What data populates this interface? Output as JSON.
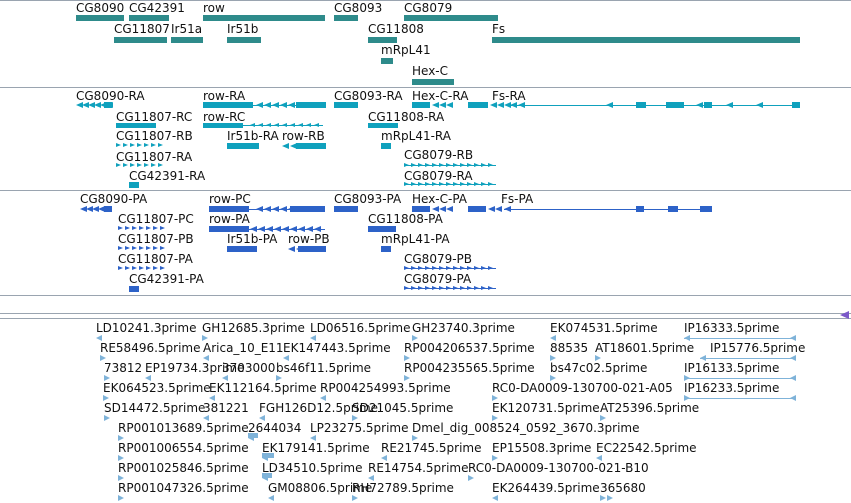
{
  "colors": {
    "gene": "#2e8b8b",
    "mrna_ra": "#0fa1bd",
    "mrna_pa": "#2d62c8",
    "est": "#7fb3d9",
    "separator": "#9aa4b0",
    "scroll_indicator": "#7b59c9"
  },
  "tracks": [
    {
      "name": "gene",
      "color": "#2e8b8b",
      "labels": [
        {
          "text": "CG8090"
        },
        {
          "text": "CG42391"
        },
        {
          "text": "row"
        },
        {
          "text": "CG8093"
        },
        {
          "text": "CG8079"
        },
        {
          "text": "CG11807"
        },
        {
          "text": "Ir51a"
        },
        {
          "text": "Ir51b"
        },
        {
          "text": "CG11808"
        },
        {
          "text": "Fs"
        },
        {
          "text": "mRpL41"
        },
        {
          "text": "Hex-C"
        }
      ]
    },
    {
      "name": "transcript-ra",
      "color": "#0fa1bd",
      "labels": [
        {
          "text": "CG8090-RA"
        },
        {
          "text": "row-RA"
        },
        {
          "text": "CG8093-RA"
        },
        {
          "text": "Hex-C-RA"
        },
        {
          "text": "Fs-RA"
        },
        {
          "text": "CG11807-RC"
        },
        {
          "text": "row-RC"
        },
        {
          "text": "CG11808-RA"
        },
        {
          "text": "CG11807-RB"
        },
        {
          "text": "Ir51b-RA"
        },
        {
          "text": "row-RB"
        },
        {
          "text": "mRpL41-RA"
        },
        {
          "text": "CG11807-RA"
        },
        {
          "text": "CG8079-RB"
        },
        {
          "text": "CG42391-RA"
        },
        {
          "text": "CG8079-RA"
        }
      ]
    },
    {
      "name": "polypeptide-pa",
      "color": "#2d62c8",
      "labels": [
        {
          "text": "CG8090-PA"
        },
        {
          "text": "row-PC"
        },
        {
          "text": "CG8093-PA"
        },
        {
          "text": "Hex-C-PA"
        },
        {
          "text": "Fs-PA"
        },
        {
          "text": "CG11807-PC"
        },
        {
          "text": "row-PA"
        },
        {
          "text": "CG11808-PA"
        },
        {
          "text": "CG11807-PB"
        },
        {
          "text": "Ir51b-PA"
        },
        {
          "text": "row-PB"
        },
        {
          "text": "mRpL41-PA"
        },
        {
          "text": "CG11807-PA"
        },
        {
          "text": "CG8079-PB"
        },
        {
          "text": "CG42391-PA"
        },
        {
          "text": "CG8079-PA"
        }
      ]
    },
    {
      "name": "est",
      "color": "#7fb3d9",
      "labels": [
        {
          "text": "LD10241.3prime"
        },
        {
          "text": "GH12685.3prime"
        },
        {
          "text": "LD06516.5prime"
        },
        {
          "text": "GH23740.3prime"
        },
        {
          "text": "EK074531.5prime"
        },
        {
          "text": "IP16333.5prime"
        },
        {
          "text": "RE58496.5prime"
        },
        {
          "text": "Arica_10_E11"
        },
        {
          "text": "EK147443.5prime"
        },
        {
          "text": "RP004206537.5prime"
        },
        {
          "text": "88535"
        },
        {
          "text": "AT18601.5prime"
        },
        {
          "text": "IP15776.5prime"
        },
        {
          "text": "73812"
        },
        {
          "text": "EP19734.3prime"
        },
        {
          "text": "3703000"
        },
        {
          "text": "bs46f11.5prime"
        },
        {
          "text": "RP004235565.5prime"
        },
        {
          "text": "bs47c02.5prime"
        },
        {
          "text": "IP16133.5prime"
        },
        {
          "text": "EK064523.5prime"
        },
        {
          "text": "EK112164.5prime"
        },
        {
          "text": "RP004254993.5prime"
        },
        {
          "text": "RC0-DA0009-130700-021-A05"
        },
        {
          "text": "IP16233.5prime"
        },
        {
          "text": "SD14472.5prime"
        },
        {
          "text": "381221"
        },
        {
          "text": "FGH126D12.5prime"
        },
        {
          "text": "SD21045.5prime"
        },
        {
          "text": "EK120731.5prime"
        },
        {
          "text": "AT25396.5prime"
        },
        {
          "text": "RP001013689.5prime"
        },
        {
          "text": "2644034"
        },
        {
          "text": "LP23275.5prime"
        },
        {
          "text": "Dmel_dig_008524_0592_3670.3prime"
        },
        {
          "text": "RP001006554.5prime"
        },
        {
          "text": "EK179141.5prime"
        },
        {
          "text": "RE21745.5prime"
        },
        {
          "text": "EP15508.3prime"
        },
        {
          "text": "EC22542.5prime"
        },
        {
          "text": "RP001025846.5prime"
        },
        {
          "text": "LD34510.5prime"
        },
        {
          "text": "RE14754.5prime"
        },
        {
          "text": "RC0-DA0009-130700-021-B10"
        },
        {
          "text": "RP001047326.5prime"
        },
        {
          "text": "GM08806.5prime"
        },
        {
          "text": "RH72789.5prime"
        },
        {
          "text": "EK264439.5prime"
        },
        {
          "text": "365680"
        }
      ]
    }
  ]
}
